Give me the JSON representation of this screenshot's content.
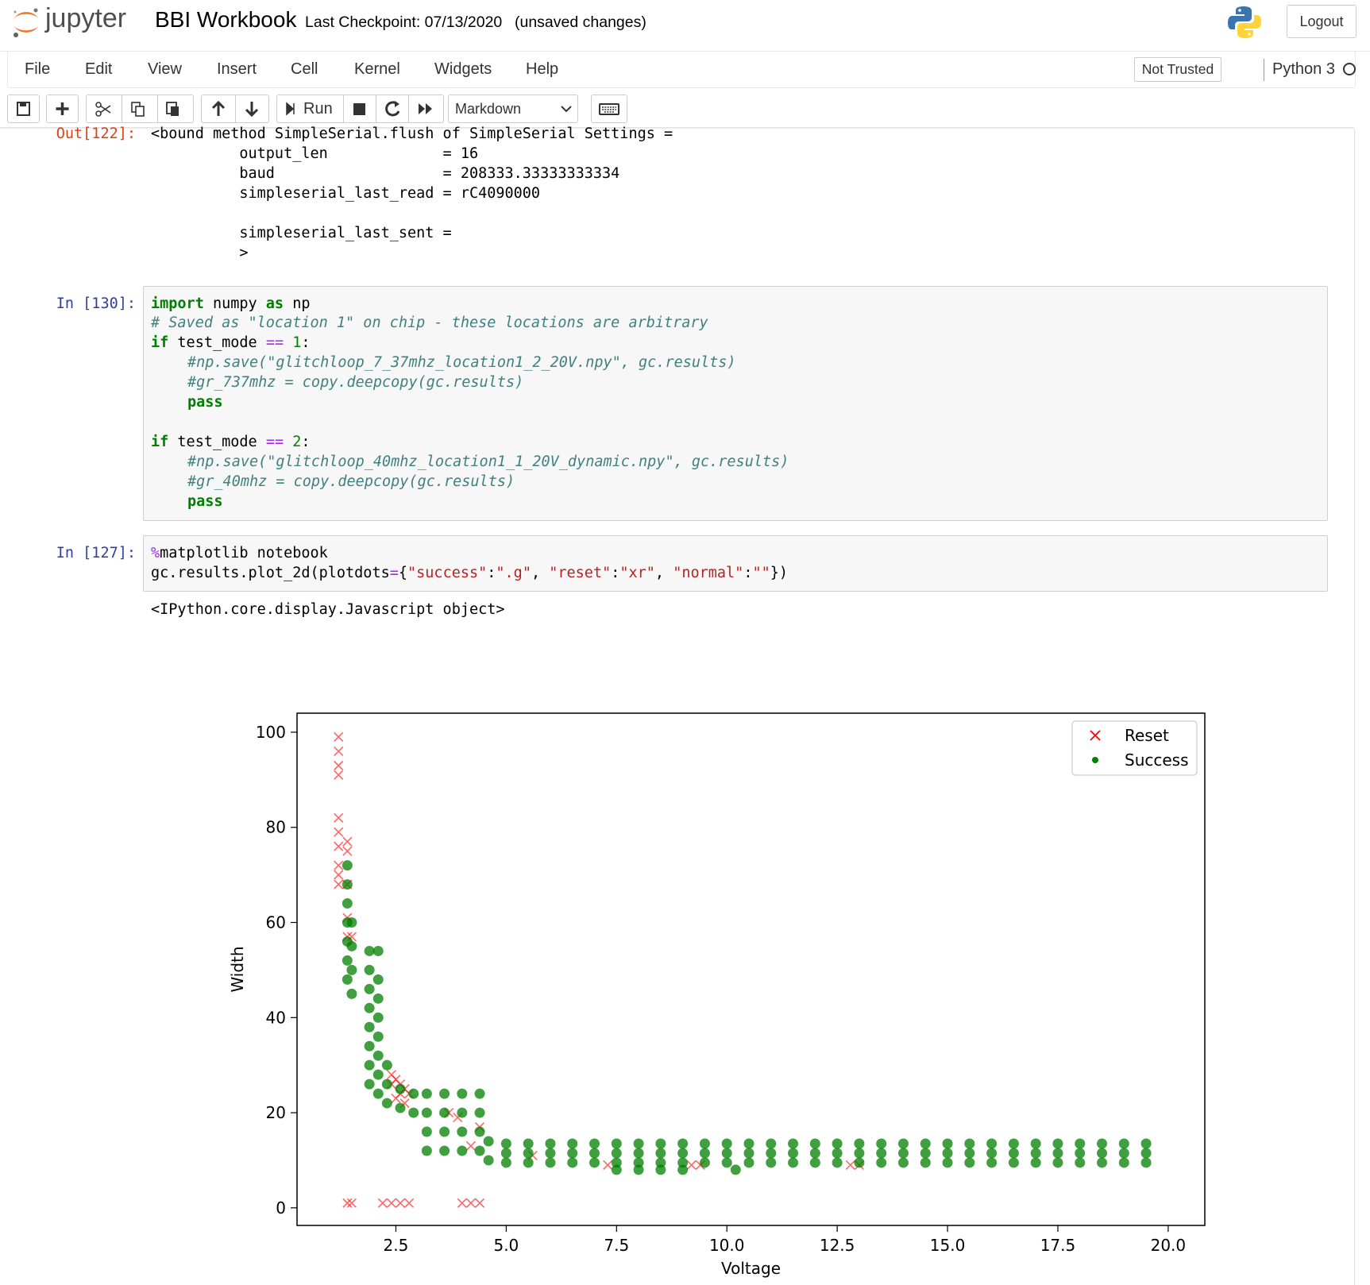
{
  "header": {
    "logo": "jupyter",
    "title": "BBI Workbook",
    "checkpoint": "Last Checkpoint: 07/13/2020",
    "status": "(unsaved changes)",
    "logout": "Logout"
  },
  "menu": [
    "File",
    "Edit",
    "View",
    "Insert",
    "Cell",
    "Kernel",
    "Widgets",
    "Help"
  ],
  "kernel": {
    "trust": "Not Trusted",
    "name": "Python 3"
  },
  "toolbar": {
    "run": "Run",
    "cell_type": "Markdown"
  },
  "cells": [
    {
      "prompt": "Out[122]:",
      "output": [
        "<bound method SimpleSerial.flush of SimpleSerial Settings =",
        "          output_len             = 16",
        "          baud                   = 208333.33333333334",
        "          simpleserial_last_read = rC4090000",
        "          simpleserial_last_sent =",
        "          >"
      ]
    },
    {
      "prompt": "In [130]:",
      "code": [
        [
          "import",
          " numpy ",
          "as",
          " np"
        ],
        [
          "# Saved as \"location 1\" on chip - these locations are arbitrary"
        ],
        [
          "if",
          " test_mode ",
          "==",
          " 1",
          ":"
        ],
        [
          "#np.save(\"glitchloop_7_37mhz_location1_2_20V.npy\", gc.results)"
        ],
        [
          "#gr_737mhz = copy.deepcopy(gc.results)"
        ],
        [
          "pass"
        ],
        [
          "if",
          " test_mode ",
          "==",
          " 2",
          ":"
        ],
        [
          "#np.save(\"glitchloop_40mhz_location1_1_20V_dynamic.npy\", gc.results)"
        ],
        [
          "#gr_40mhz = copy.deepcopy(gc.results)"
        ],
        [
          "pass"
        ]
      ]
    },
    {
      "prompt": "In [127]:",
      "code": [
        [
          "%",
          "matplotlib notebook"
        ],
        [
          "gc.results.plot_2d(plotdots",
          "=",
          "{",
          "\"success\"",
          ":",
          "\".g\"",
          ", ",
          "\"reset\"",
          ":",
          "\"xr\"",
          ", ",
          "\"normal\"",
          ":",
          "\"\"",
          "})"
        ]
      ],
      "output": "<IPython.core.display.Javascript object>"
    }
  ],
  "chart_data": {
    "type": "scatter",
    "xlabel": "Voltage",
    "ylabel": "Width",
    "xlim": [
      0.26,
      20.83
    ],
    "ylim": [
      -3.7,
      104
    ],
    "xticks": [
      2.5,
      {
        "value": 5,
        "label": "5.0"
      },
      7.5,
      {
        "value": 10,
        "label": "10.0"
      },
      12.5,
      {
        "value": 15,
        "label": "15.0"
      },
      17.5,
      {
        "value": 20,
        "label": "20.0"
      }
    ],
    "yticks": [
      0,
      20,
      40,
      60,
      80,
      100
    ],
    "legend": "upper right",
    "series": [
      {
        "name": "Reset",
        "color": "#ff0000",
        "marker": "x",
        "x": [
          1.2,
          1.2,
          1.2,
          1.2,
          1.2,
          1.2,
          1.2,
          1.2,
          1.2,
          1.2,
          1.4,
          1.4,
          1.4,
          1.4,
          1.4,
          1.5,
          2.4,
          2.5,
          2.6,
          2.7,
          2.5,
          2.6,
          2.7,
          2.4,
          2.8,
          3.7,
          3.9,
          4.2,
          4.4,
          5.6,
          7.3,
          9.2,
          9.4,
          12.8,
          13.0,
          1.4,
          1.5,
          2.2,
          2.4,
          2.6,
          2.8,
          4.0,
          4.2,
          4.4
        ],
        "values": [
          99,
          96,
          93,
          91,
          82,
          79,
          76,
          72,
          70,
          68,
          77,
          75,
          68,
          61,
          57,
          57,
          28,
          27,
          26,
          25,
          23,
          24,
          22,
          26,
          24,
          20,
          19,
          13,
          17,
          11,
          9,
          9,
          9,
          9,
          9,
          1,
          1,
          1,
          1,
          1,
          1,
          1,
          1,
          1
        ]
      },
      {
        "name": "Success",
        "color": "#008000",
        "marker": "o",
        "x": [
          1.4,
          1.4,
          1.4,
          1.4,
          1.4,
          1.4,
          1.4,
          1.5,
          1.5,
          1.5,
          1.5,
          1.9,
          1.9,
          1.9,
          1.9,
          1.9,
          1.9,
          1.9,
          1.9,
          2.1,
          2.1,
          2.1,
          2.1,
          2.1,
          2.1,
          2.1,
          2.1,
          2.3,
          2.3,
          2.3,
          2.6,
          2.6,
          2.9,
          2.9,
          3.2,
          3.2,
          3.2,
          3.2,
          3.6,
          3.6,
          3.6,
          3.6,
          4.0,
          4.0,
          4.0,
          4.0,
          4.4,
          4.4,
          4.4,
          4.4,
          4.6,
          4.6,
          5,
          5.5,
          6,
          6.5,
          7,
          7.5,
          8,
          8.5,
          9,
          9.5,
          10,
          10.5,
          11,
          11.5,
          12,
          12.5,
          13,
          13.5,
          14,
          14.5,
          15,
          15.5,
          16,
          16.5,
          17,
          17.5,
          18,
          18.5,
          19,
          19.5,
          5,
          5.5,
          6,
          6.5,
          7,
          7.5,
          8,
          8.5,
          9,
          9.5,
          10,
          10.5,
          11,
          11.5,
          12,
          12.5,
          13,
          13.5,
          14,
          14.5,
          15,
          15.5,
          16,
          16.5,
          17,
          17.5,
          18,
          18.5,
          19,
          19.5,
          5,
          5.5,
          6,
          6.5,
          7,
          7.5,
          8,
          8.5,
          9,
          9.5,
          10,
          10.5,
          11,
          11.5,
          12,
          12.5,
          13,
          13.5,
          14,
          14.5,
          15,
          15.5,
          16,
          16.5,
          17,
          17.5,
          18,
          18.5,
          19,
          19.5,
          7.5,
          8,
          8.5,
          9,
          10.2
        ],
        "values": [
          48,
          52,
          56,
          60,
          64,
          68,
          72,
          45,
          50,
          55,
          60,
          26,
          30,
          34,
          38,
          42,
          46,
          50,
          54,
          24,
          28,
          32,
          36,
          40,
          44,
          48,
          54,
          22,
          26,
          30,
          21,
          25,
          20,
          24,
          12,
          16,
          20,
          24,
          12,
          16,
          20,
          24,
          12,
          16,
          20,
          24,
          12,
          16,
          20,
          24,
          10,
          14,
          9.5,
          9.5,
          9.5,
          9.5,
          9.5,
          9.5,
          9.5,
          9.5,
          9.5,
          9.5,
          9.5,
          9.5,
          9.5,
          9.5,
          9.5,
          9.5,
          9.5,
          9.5,
          9.5,
          9.5,
          9.5,
          9.5,
          9.5,
          9.5,
          9.5,
          9.5,
          9.5,
          9.5,
          9.5,
          9.5,
          11.5,
          11.5,
          11.5,
          11.5,
          11.5,
          11.5,
          11.5,
          11.5,
          11.5,
          11.5,
          11.5,
          11.5,
          11.5,
          11.5,
          11.5,
          11.5,
          11.5,
          11.5,
          11.5,
          11.5,
          11.5,
          11.5,
          11.5,
          11.5,
          11.5,
          11.5,
          11.5,
          11.5,
          11.5,
          11.5,
          13.5,
          13.5,
          13.5,
          13.5,
          13.5,
          13.5,
          13.5,
          13.5,
          13.5,
          13.5,
          13.5,
          13.5,
          13.5,
          13.5,
          13.5,
          13.5,
          13.5,
          13.5,
          13.5,
          13.5,
          13.5,
          13.5,
          13.5,
          13.5,
          13.5,
          13.5,
          13.5,
          13.5,
          13.5,
          13.5,
          8,
          8,
          8,
          8,
          8
        ]
      }
    ]
  }
}
